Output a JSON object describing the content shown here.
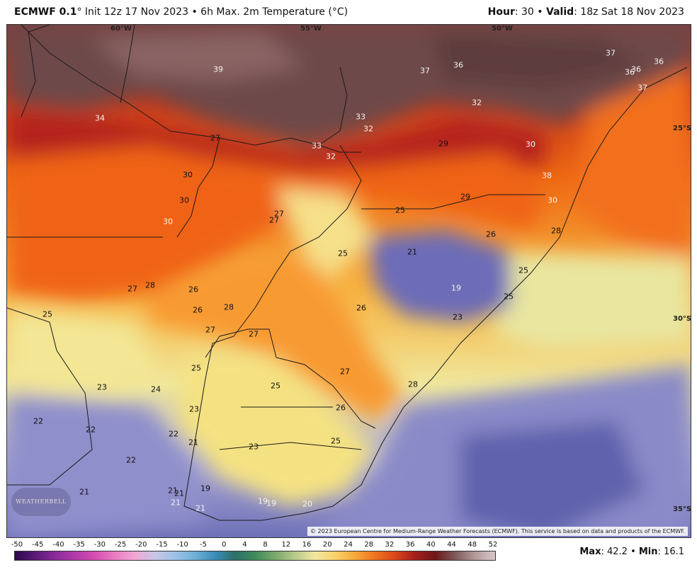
{
  "header": {
    "model": "ECMWF 0.1",
    "init_text": "° Init 12z 17 Nov 2023 • 6h Max. 2m Temperature (°C)",
    "hour_label": "Hour",
    "hour_value": ": 30 • ",
    "valid_label": "Valid",
    "valid_value": ": 18z Sat 18 Nov 2023"
  },
  "map": {
    "longitudes": [
      "60°W",
      "55°W",
      "50°W"
    ],
    "latitudes": [
      "25°S",
      "30°S",
      "35°S"
    ],
    "values": [
      {
        "v": "39"
      },
      {
        "v": "37"
      },
      {
        "v": "36"
      },
      {
        "v": "37"
      },
      {
        "v": "36"
      },
      {
        "v": "36"
      },
      {
        "v": "36"
      },
      {
        "v": "37"
      },
      {
        "v": "34"
      },
      {
        "v": "33"
      },
      {
        "v": "32"
      },
      {
        "v": "32"
      },
      {
        "v": "29"
      },
      {
        "v": "30"
      },
      {
        "v": "27"
      },
      {
        "v": "33"
      },
      {
        "v": "32"
      },
      {
        "v": "30"
      },
      {
        "v": "30"
      },
      {
        "v": "38"
      },
      {
        "v": "29"
      },
      {
        "v": "27"
      },
      {
        "v": "27"
      },
      {
        "v": "30"
      },
      {
        "v": "30"
      },
      {
        "v": "25"
      },
      {
        "v": "26"
      },
      {
        "v": "21"
      },
      {
        "v": "25"
      },
      {
        "v": "25"
      },
      {
        "v": "28"
      },
      {
        "v": "27"
      },
      {
        "v": "28"
      },
      {
        "v": "19"
      },
      {
        "v": "26"
      },
      {
        "v": "28"
      },
      {
        "v": "26"
      },
      {
        "v": "25"
      },
      {
        "v": "23"
      },
      {
        "v": "25"
      },
      {
        "v": "27"
      },
      {
        "v": "27"
      },
      {
        "v": "26"
      },
      {
        "v": "27"
      },
      {
        "v": "25"
      },
      {
        "v": "28"
      },
      {
        "v": "23"
      },
      {
        "v": "24"
      },
      {
        "v": "25"
      },
      {
        "v": "26"
      },
      {
        "v": "23"
      },
      {
        "v": "22"
      },
      {
        "v": "22"
      },
      {
        "v": "22"
      },
      {
        "v": "21"
      },
      {
        "v": "23"
      },
      {
        "v": "25"
      },
      {
        "v": "22"
      },
      {
        "v": "21"
      },
      {
        "v": "21"
      },
      {
        "v": "19"
      },
      {
        "v": "21"
      },
      {
        "v": "21"
      },
      {
        "v": "21"
      },
      {
        "v": "19"
      },
      {
        "v": "19"
      },
      {
        "v": "20"
      }
    ]
  },
  "copyright": "© 2023 European Centre for Medium-Range Weather Forecasts (ECMWF). This service is based on data and products of the ECMWF.",
  "logo": "WEATHERBELL",
  "colorbar": {
    "labels": [
      "-50",
      "-45",
      "-40",
      "-35",
      "-30",
      "-25",
      "-20",
      "-15",
      "-10",
      "-5",
      "0",
      "4",
      "8",
      "12",
      "16",
      "20",
      "24",
      "28",
      "32",
      "36",
      "40",
      "44",
      "48",
      "52"
    ],
    "colors": [
      "#2b0a4a",
      "#5a1a78",
      "#8a2a9a",
      "#b23aa8",
      "#d64eb2",
      "#e87cc2",
      "#f2a6d4",
      "#c9c6e6",
      "#9fc2e6",
      "#6fb0d8",
      "#3a8cb8",
      "#2f6f6a",
      "#3e8c5a",
      "#7aa86a",
      "#b7c98a",
      "#f1e7a0",
      "#f8d36a",
      "#f6a93a",
      "#ee7420",
      "#d9461a",
      "#a4201c",
      "#6e1818",
      "#7e5a5a",
      "#b49a9a",
      "#d8c8c8"
    ]
  },
  "stats": {
    "max_label": "Max",
    "max_value": ": 42.2 • ",
    "min_label": "Min",
    "min_value": ": 16.1"
  }
}
